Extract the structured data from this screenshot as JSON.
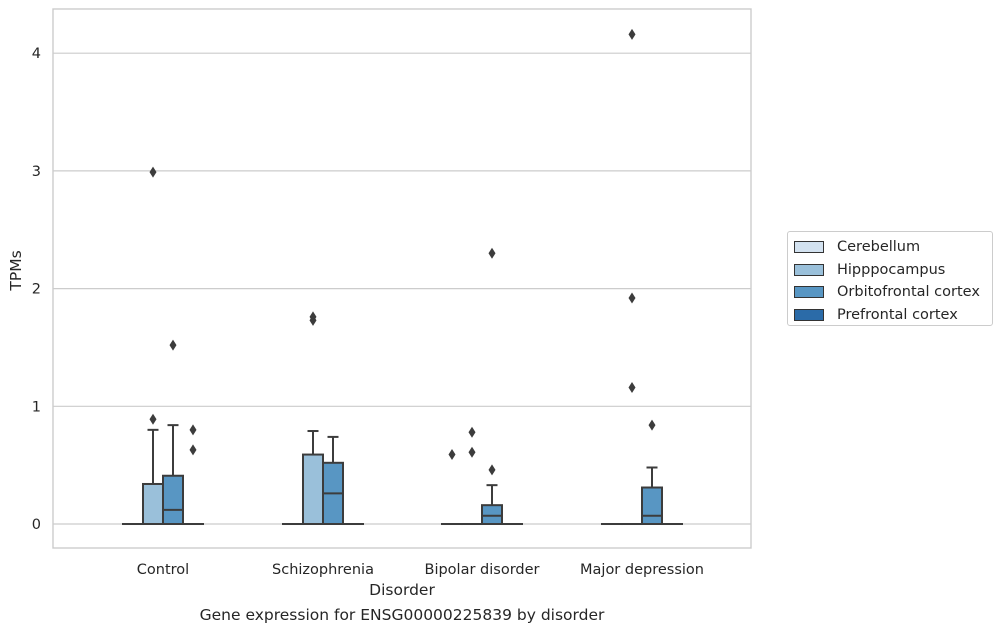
{
  "chart_data": {
    "type": "box",
    "caption": "Gene expression for ENSG00000225839 by disorder",
    "xlabel": "Disorder",
    "ylabel": "TPMs",
    "ylim": [
      -0.2,
      4.38
    ],
    "yticks": [
      0,
      1,
      2,
      3,
      4
    ],
    "grid": true,
    "legend_position": "right",
    "categories": [
      "Control",
      "Schizophrenia",
      "Bipolar disorder",
      "Major depression"
    ],
    "series": [
      {
        "name": "Cerebellum",
        "color": "#d3e2f0",
        "boxes": [
          {
            "q1": 0,
            "median": 0,
            "q3": 0,
            "whisker_low": 0,
            "whisker_high": 0,
            "outliers": []
          },
          {
            "q1": 0,
            "median": 0,
            "q3": 0,
            "whisker_low": 0,
            "whisker_high": 0,
            "outliers": []
          },
          {
            "q1": 0,
            "median": 0,
            "q3": 0,
            "whisker_low": 0,
            "whisker_high": 0,
            "outliers": [
              0.59
            ]
          },
          {
            "q1": 0,
            "median": 0,
            "q3": 0,
            "whisker_low": 0,
            "whisker_high": 0,
            "outliers": []
          }
        ]
      },
      {
        "name": "Hipppocampus",
        "color": "#9ac0da",
        "boxes": [
          {
            "q1": 0,
            "median": 0,
            "q3": 0.34,
            "whisker_low": 0,
            "whisker_high": 0.8,
            "outliers": [
              0.89,
              2.99
            ]
          },
          {
            "q1": 0,
            "median": 0,
            "q3": 0.59,
            "whisker_low": 0,
            "whisker_high": 0.79,
            "outliers": [
              1.73,
              1.76
            ]
          },
          {
            "q1": 0,
            "median": 0,
            "q3": 0,
            "whisker_low": 0,
            "whisker_high": 0,
            "outliers": [
              0.61,
              0.78
            ]
          },
          {
            "q1": 0,
            "median": 0,
            "q3": 0,
            "whisker_low": 0,
            "whisker_high": 0,
            "outliers": [
              1.16,
              1.92,
              4.16
            ]
          }
        ]
      },
      {
        "name": "Orbitofrontal cortex",
        "color": "#5896c3",
        "boxes": [
          {
            "q1": 0,
            "median": 0.12,
            "q3": 0.41,
            "whisker_low": 0,
            "whisker_high": 0.84,
            "outliers": [
              1.52
            ]
          },
          {
            "q1": 0,
            "median": 0.26,
            "q3": 0.52,
            "whisker_low": 0,
            "whisker_high": 0.74,
            "outliers": []
          },
          {
            "q1": 0,
            "median": 0.07,
            "q3": 0.16,
            "whisker_low": 0,
            "whisker_high": 0.33,
            "outliers": [
              0.46,
              2.3
            ]
          },
          {
            "q1": 0,
            "median": 0.07,
            "q3": 0.31,
            "whisker_low": 0,
            "whisker_high": 0.48,
            "outliers": [
              0.84
            ]
          }
        ]
      },
      {
        "name": "Prefrontal cortex",
        "color": "#2b6ba8",
        "boxes": [
          {
            "q1": 0,
            "median": 0,
            "q3": 0,
            "whisker_low": 0,
            "whisker_high": 0,
            "outliers": [
              0.63,
              0.8
            ]
          },
          {
            "q1": 0,
            "median": 0,
            "q3": 0,
            "whisker_low": 0,
            "whisker_high": 0,
            "outliers": []
          },
          {
            "q1": 0,
            "median": 0,
            "q3": 0,
            "whisker_low": 0,
            "whisker_high": 0,
            "outliers": []
          },
          {
            "q1": 0,
            "median": 0,
            "q3": 0,
            "whisker_low": 0,
            "whisker_high": 0,
            "outliers": []
          }
        ]
      }
    ]
  },
  "legend": {
    "items": [
      {
        "label": "Cerebellum",
        "color": "#d3e2f0"
      },
      {
        "label": "Hipppocampus",
        "color": "#9ac0da"
      },
      {
        "label": "Orbitofrontal cortex",
        "color": "#5896c3"
      },
      {
        "label": "Prefrontal cortex",
        "color": "#2b6ba8"
      }
    ]
  }
}
